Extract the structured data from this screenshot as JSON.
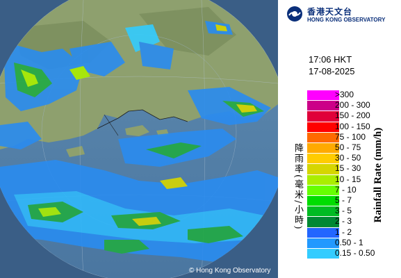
{
  "observatory": {
    "name_zh": "香港天文台",
    "name_en": "HONG KONG OBSERVATORY"
  },
  "timestamp": {
    "time": "17:06 HKT",
    "date": "17-08-2025"
  },
  "legend": {
    "axis_title_en": "Rainfall Rate (mm/h)",
    "axis_title_zh": "降雨率(毫米/小時)",
    "entries": [
      {
        "label": ">300",
        "color": "#ff00ff"
      },
      {
        "label": "200 - 300",
        "color": "#cc0088"
      },
      {
        "label": "150 - 200",
        "color": "#e0003a"
      },
      {
        "label": "100 - 150",
        "color": "#ff0000"
      },
      {
        "label": "75 - 100",
        "color": "#ff6a00"
      },
      {
        "label": "50 - 75",
        "color": "#ffaa00"
      },
      {
        "label": "30 - 50",
        "color": "#ffcc00"
      },
      {
        "label": "15 - 30",
        "color": "#d6d600"
      },
      {
        "label": "10 - 15",
        "color": "#aaee00"
      },
      {
        "label": "7 - 10",
        "color": "#66ff00"
      },
      {
        "label": "5 - 7",
        "color": "#00dd00"
      },
      {
        "label": "3 - 5",
        "color": "#00bb22"
      },
      {
        "label": "2 - 3",
        "color": "#008833"
      },
      {
        "label": "1 - 2",
        "color": "#2266ff"
      },
      {
        "label": "0.50 - 1",
        "color": "#2299ff"
      },
      {
        "label": "0.15 - 0.50",
        "color": "#33ccff"
      }
    ]
  },
  "copyright": "© Hong Kong Observatory"
}
